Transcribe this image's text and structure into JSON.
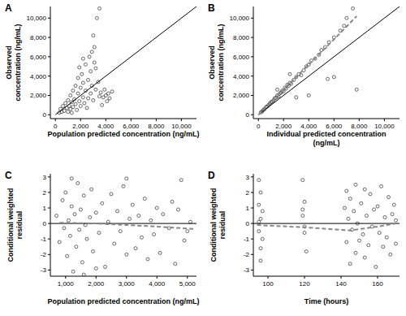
{
  "chart_data": [
    {
      "type": "scatter",
      "title": "A",
      "x_label": "Population predicted concentration (ng/mL)",
      "y_label": "Observed\nconcentration (ng/mL)",
      "xlim": [
        -400,
        11200
      ],
      "ylim": [
        -400,
        11200
      ],
      "xticks": [
        0,
        {
          "value": 2000,
          "label": "2,000"
        },
        {
          "value": 4000,
          "label": "4,000"
        },
        {
          "value": 6000,
          "label": "6,000"
        },
        {
          "value": 8000,
          "label": "8,000"
        },
        {
          "value": 10000,
          "label": "10,000"
        }
      ],
      "yticks": [
        0,
        {
          "value": 2000,
          "label": "2,000"
        },
        {
          "value": 4000,
          "label": "4,000"
        },
        {
          "value": 6000,
          "label": "6,000"
        },
        {
          "value": 8000,
          "label": "8,000"
        },
        {
          "value": 10000,
          "label": "10,000"
        }
      ],
      "series": [
        {
          "type": "scatter",
          "marker": "circle",
          "color": "#444444",
          "x": [
            300,
            400,
            500,
            600,
            700,
            800,
            900,
            1000,
            1000,
            1100,
            1200,
            1200,
            1300,
            1400,
            1400,
            1500,
            1600,
            1600,
            1700,
            1800,
            1800,
            1900,
            2000,
            2000,
            2100,
            2200,
            2200,
            2300,
            2400,
            2400,
            2500,
            2600,
            2600,
            2700,
            2800,
            2800,
            2900,
            3000,
            3000,
            3100,
            3200,
            3200,
            3300,
            3400,
            3500,
            3500,
            3600,
            3700,
            3800,
            3900,
            4000,
            4100,
            4200,
            4300,
            4500,
            2200,
            1900,
            2900,
            3100,
            1300
          ],
          "values": [
            200,
            600,
            300,
            900,
            400,
            1200,
            700,
            1500,
            300,
            900,
            2000,
            600,
            1300,
            2500,
            800,
            1600,
            3000,
            1100,
            500,
            2200,
            3800,
            1400,
            2800,
            900,
            4200,
            1800,
            3300,
            1200,
            5200,
            2500,
            700,
            3600,
            1700,
            6000,
            2200,
            4500,
            3000,
            8200,
            1500,
            7000,
            2600,
            4800,
            10000,
            3400,
            11000,
            1900,
            2300,
            1000,
            1800,
            2600,
            2000,
            1400,
            2200,
            1700,
            2400,
            5800,
            4900,
            6500,
            5400,
            200
          ]
        },
        {
          "type": "line",
          "line_style": "solid",
          "color": "#000000",
          "x": [
            0,
            11200
          ],
          "values": [
            0,
            11200
          ]
        }
      ]
    },
    {
      "type": "scatter",
      "title": "B",
      "x_label": "Individual predicted concentration\n(ng/mL)",
      "y_label": "Observed\nconcentration (ng/mL)",
      "xlim": [
        -400,
        11200
      ],
      "ylim": [
        -400,
        11200
      ],
      "xticks": [
        0,
        {
          "value": 2000,
          "label": "2,000"
        },
        {
          "value": 4000,
          "label": "4,000"
        },
        {
          "value": 6000,
          "label": "6,000"
        },
        {
          "value": 8000,
          "label": "8,000"
        },
        {
          "value": 10000,
          "label": "10,000"
        }
      ],
      "yticks": [
        0,
        {
          "value": 2000,
          "label": "2,000"
        },
        {
          "value": 4000,
          "label": "4,000"
        },
        {
          "value": 6000,
          "label": "6,000"
        },
        {
          "value": 8000,
          "label": "8,000"
        },
        {
          "value": 10000,
          "label": "10,000"
        }
      ],
      "series": [
        {
          "type": "scatter",
          "marker": "circle",
          "color": "#444444",
          "x": [
            200,
            300,
            400,
            500,
            600,
            700,
            800,
            900,
            1000,
            1100,
            1200,
            1300,
            1400,
            1500,
            1600,
            1700,
            1800,
            1900,
            2000,
            2100,
            2200,
            2300,
            2400,
            2500,
            2600,
            2800,
            3000,
            3200,
            3400,
            3600,
            3800,
            4000,
            4200,
            4500,
            4800,
            5000,
            5300,
            5600,
            6000,
            6500,
            6800,
            7000,
            7500,
            5500,
            6000,
            7800,
            4000,
            3000,
            2500,
            1500
          ],
          "values": [
            250,
            350,
            500,
            600,
            800,
            850,
            1000,
            1150,
            1300,
            1350,
            1500,
            1700,
            1750,
            2000,
            1900,
            2200,
            2300,
            2500,
            2400,
            2800,
            2700,
            3100,
            3000,
            3300,
            3200,
            3600,
            3900,
            4200,
            4100,
            4600,
            5000,
            5200,
            5600,
            5800,
            6200,
            6700,
            7000,
            7500,
            8000,
            8700,
            9200,
            10000,
            11000,
            3700,
            3900,
            2600,
            2000,
            1800,
            4200,
            2600
          ]
        },
        {
          "type": "line",
          "line_style": "solid",
          "color": "#000000",
          "x": [
            0,
            11200
          ],
          "values": [
            0,
            11200
          ]
        },
        {
          "type": "line",
          "line_style": "dashed",
          "color": "#888888",
          "x": [
            0,
            2000,
            4000,
            6000,
            7800
          ],
          "values": [
            0,
            2600,
            5200,
            7800,
            10200
          ]
        }
      ]
    },
    {
      "type": "scatter",
      "title": "C",
      "x_label": "Population predicted concentration (ng/mL)",
      "y_label": "Conditional weighted\nresidual",
      "xlim": [
        500,
        5300
      ],
      "ylim": [
        -3.4,
        3.2
      ],
      "xticks": [
        {
          "value": 1000,
          "label": "1,000"
        },
        {
          "value": 2000,
          "label": "2,000"
        },
        {
          "value": 3000,
          "label": "3,000"
        },
        {
          "value": 4000,
          "label": "4,000"
        },
        {
          "value": 5000,
          "label": "5,000"
        }
      ],
      "yticks": [
        -3,
        -2,
        -1,
        0,
        1,
        2,
        3
      ],
      "series": [
        {
          "type": "scatter",
          "marker": "circle",
          "color": "#444444",
          "x": [
            700,
            800,
            900,
            950,
            1000,
            1050,
            1100,
            1150,
            1200,
            1250,
            1300,
            1350,
            1400,
            1450,
            1500,
            1550,
            1600,
            1650,
            1700,
            1800,
            1850,
            1900,
            2000,
            2100,
            2200,
            2300,
            2400,
            2500,
            2600,
            2700,
            2800,
            2900,
            3000,
            3100,
            3200,
            3300,
            3400,
            3500,
            3600,
            3700,
            3800,
            3900,
            4000,
            4100,
            4200,
            4400,
            4500,
            4600,
            4700,
            4800,
            4900,
            5000,
            5100,
            1200,
            2000,
            3000,
            1600
          ],
          "values": [
            0.5,
            -1.2,
            1.5,
            -0.3,
            2.0,
            -2.1,
            0.2,
            -0.8,
            1.1,
            -3.1,
            0.6,
            -1.5,
            2.6,
            -0.4,
            0.9,
            -2.5,
            1.8,
            -0.1,
            -1.0,
            0.4,
            2.2,
            -1.8,
            0.7,
            -0.6,
            1.3,
            -2.8,
            0.1,
            1.9,
            -1.3,
            0.8,
            -0.5,
            2.4,
            -2.0,
            0.3,
            1.2,
            -1.6,
            0.5,
            -0.9,
            1.6,
            -2.3,
            0.2,
            -0.7,
            1.0,
            -1.9,
            0.6,
            -0.3,
            1.4,
            -2.6,
            0.9,
            2.8,
            -1.1,
            -0.5,
            0.1,
            2.9,
            -2.9,
            2.9,
            -3.3
          ]
        },
        {
          "type": "line",
          "line_style": "solid",
          "color": "#000000",
          "x": [
            500,
            5300
          ],
          "values": [
            0,
            0
          ]
        },
        {
          "type": "line",
          "line_style": "dashed",
          "color": "#888888",
          "x": [
            800,
            2000,
            3000,
            4000,
            5200
          ],
          "values": [
            0.05,
            0.0,
            -0.1,
            -0.2,
            -0.35
          ]
        }
      ]
    },
    {
      "type": "scatter",
      "title": "D",
      "x_label": "Time (hours)",
      "y_label": "Conditional weighted\nresidual",
      "xlim": [
        92,
        172
      ],
      "ylim": [
        -3.4,
        3.2
      ],
      "xticks": [
        100,
        120,
        140,
        160
      ],
      "yticks": [
        -3,
        -2,
        -1,
        0,
        1,
        2,
        3
      ],
      "series": [
        {
          "type": "scatter",
          "marker": "circle",
          "color": "#444444",
          "x": [
            95,
            95,
            95,
            96,
            96,
            96,
            97,
            97,
            96,
            95,
            119,
            119,
            120,
            120,
            121,
            120,
            119,
            142,
            143,
            143,
            144,
            145,
            145,
            146,
            147,
            148,
            148,
            149,
            150,
            151,
            152,
            153,
            153,
            154,
            155,
            156,
            157,
            158,
            159,
            160,
            161,
            162,
            163,
            164,
            165,
            166,
            167,
            168,
            169,
            170,
            170
          ],
          "values": [
            2.8,
            1.2,
            -0.5,
            -2.4,
            0.3,
            2.0,
            -1.0,
            0.8,
            -1.6,
            0.1,
            2.8,
            0.5,
            -0.6,
            1.4,
            -1.8,
            -0.2,
            0.9,
            1.0,
            -1.2,
            2.1,
            0.3,
            -2.6,
            1.6,
            -0.4,
            0.8,
            -1.9,
            2.5,
            0.0,
            -1.1,
            1.3,
            -0.7,
            2.2,
            -2.2,
            0.5,
            -1.4,
            1.9,
            -0.2,
            0.9,
            -2.8,
            1.1,
            -0.6,
            2.4,
            -1.5,
            0.4,
            -0.9,
            1.7,
            -2.0,
            0.6,
            1.2,
            -1.3,
            0.2
          ]
        },
        {
          "type": "line",
          "line_style": "solid",
          "color": "#000000",
          "x": [
            92,
            172
          ],
          "values": [
            0,
            0
          ]
        },
        {
          "type": "line",
          "line_style": "dashed",
          "color": "#888888",
          "x": [
            94,
            120,
            145,
            160,
            170
          ],
          "values": [
            -0.1,
            -0.25,
            -0.45,
            -0.2,
            0.0
          ]
        }
      ]
    }
  ]
}
